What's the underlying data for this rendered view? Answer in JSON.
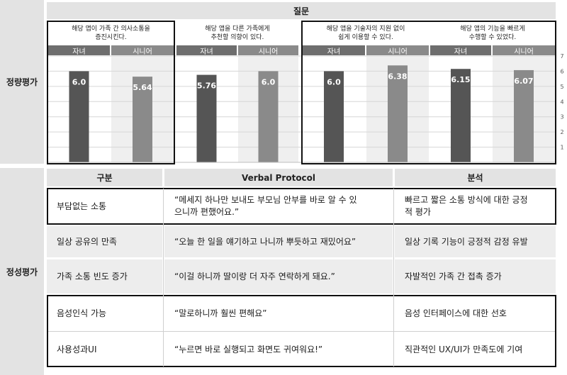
{
  "header": {
    "question_label": "질문"
  },
  "sections": {
    "quantitative": "정량평가",
    "qualitative": "정성평가"
  },
  "groups": {
    "child": "자녀",
    "senior": "시니어"
  },
  "y_axis_ticks": [
    "7",
    "6",
    "5",
    "4",
    "3",
    "2",
    "1"
  ],
  "chart_data": {
    "type": "bar",
    "categories": [
      "해당 앱이 가족 간 의사소통을 증진시킨다.",
      "해당 앱을 다른 가족에게 추천할 의향이 있다.",
      "해당 앱을 기술자의 지원 없이 쉽게 이용할 수 있다.",
      "해당 앱의 기능을 빠르게 수행할 수 있었다."
    ],
    "series": [
      {
        "name": "자녀",
        "values": [
          6.0,
          5.76,
          6.0,
          6.15
        ],
        "labels": [
          "6.0",
          "5.76",
          "6.0",
          "6.15"
        ],
        "color": "#555555"
      },
      {
        "name": "시니어",
        "values": [
          5.64,
          6.0,
          6.38,
          6.07
        ],
        "labels": [
          "5.64",
          "6.0",
          "6.38",
          "6.07"
        ],
        "color": "#8a8a8a"
      }
    ],
    "ylim": [
      0,
      7
    ],
    "ticks": [
      1,
      2,
      3,
      4,
      5,
      6,
      7
    ],
    "xlabel": "",
    "ylabel": ""
  },
  "questions": [
    {
      "line1": "해당 앱이 가족 간 의사소통을",
      "line2": "증진시킨다."
    },
    {
      "line1": "해당 앱을 다른 가족에게",
      "line2": "추천할 의향이 있다."
    },
    {
      "line1": "해당 앱을 기술자의 지원 없이",
      "line2": "쉽게 이용할 수 있다."
    },
    {
      "line1": "해당 앱의 기능을 빠르게",
      "line2": "수행할 수 있었다."
    }
  ],
  "table": {
    "headers": [
      "구분",
      "Verbal Protocol",
      "분석"
    ],
    "rows": [
      {
        "category": "부담없는 소통",
        "protocol_line1": "“메세지 하나만 보내도 부모님 안부를 바로 알 수 있",
        "protocol_line2": "으니까 편했어요.”",
        "analysis_line1": "빠르고 짧은 소통 방식에 대한 긍정",
        "analysis_line2": "적 평가"
      },
      {
        "category": "일상 공유의 만족",
        "protocol_line1": "“오늘 한 일을 얘기하고 나니까 뿌듯하고 재밌어요”",
        "protocol_line2": "",
        "analysis_line1": "일상 기록 기능이 긍정적 감정 유발",
        "analysis_line2": ""
      },
      {
        "category": "가족 소통 빈도 증가",
        "protocol_line1": "“이걸 하니까 딸이랑 더 자주 연락하게 돼요.”",
        "protocol_line2": "",
        "analysis_line1": "자발적인 가족 간 접촉 증가",
        "analysis_line2": ""
      },
      {
        "category": "음성인식 가능",
        "protocol_line1": "“말로하니까 훨씬 편해요”",
        "protocol_line2": "",
        "analysis_line1": "음성 인터페이스에 대한 선호",
        "analysis_line2": ""
      },
      {
        "category": "사용성과UI",
        "protocol_line1": "“누르면 바로 실행되고 화면도 귀여워요!”",
        "protocol_line2": "",
        "analysis_line1": "직관적인 UX/UI가 만족도에 기여",
        "analysis_line2": ""
      }
    ]
  }
}
